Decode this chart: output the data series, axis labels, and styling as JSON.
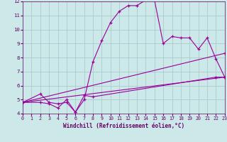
{
  "xlabel": "Windchill (Refroidissement éolien,°C)",
  "bg_color": "#cce8e8",
  "line_color": "#990099",
  "grid_color": "#aacccc",
  "text_color": "#660066",
  "xlim": [
    0,
    23
  ],
  "ylim": [
    4,
    12
  ],
  "xticks": [
    0,
    1,
    2,
    3,
    4,
    5,
    6,
    7,
    8,
    9,
    10,
    11,
    12,
    13,
    14,
    15,
    16,
    17,
    18,
    19,
    20,
    21,
    22,
    23
  ],
  "yticks": [
    4,
    5,
    6,
    7,
    8,
    9,
    10,
    11,
    12
  ],
  "series": [
    {
      "x": [
        0,
        2,
        3,
        4,
        5,
        6,
        7,
        8,
        9,
        10,
        11,
        12,
        13,
        14,
        15,
        16,
        17,
        18,
        19,
        20,
        21,
        22,
        23
      ],
      "y": [
        4.8,
        5.4,
        4.8,
        4.7,
        4.8,
        4.1,
        5.0,
        7.7,
        9.2,
        10.5,
        11.3,
        11.7,
        11.7,
        12.1,
        12.1,
        9.0,
        9.5,
        9.4,
        9.4,
        8.6,
        9.4,
        7.9,
        6.6
      ]
    },
    {
      "x": [
        0,
        2,
        3,
        4,
        5,
        6,
        7,
        8,
        22,
        23
      ],
      "y": [
        4.8,
        4.8,
        4.7,
        4.4,
        5.0,
        4.1,
        5.3,
        5.2,
        6.6,
        6.6
      ]
    },
    {
      "x": [
        0,
        23
      ],
      "y": [
        4.8,
        8.3
      ]
    },
    {
      "x": [
        0,
        23
      ],
      "y": [
        4.8,
        6.6
      ]
    }
  ]
}
